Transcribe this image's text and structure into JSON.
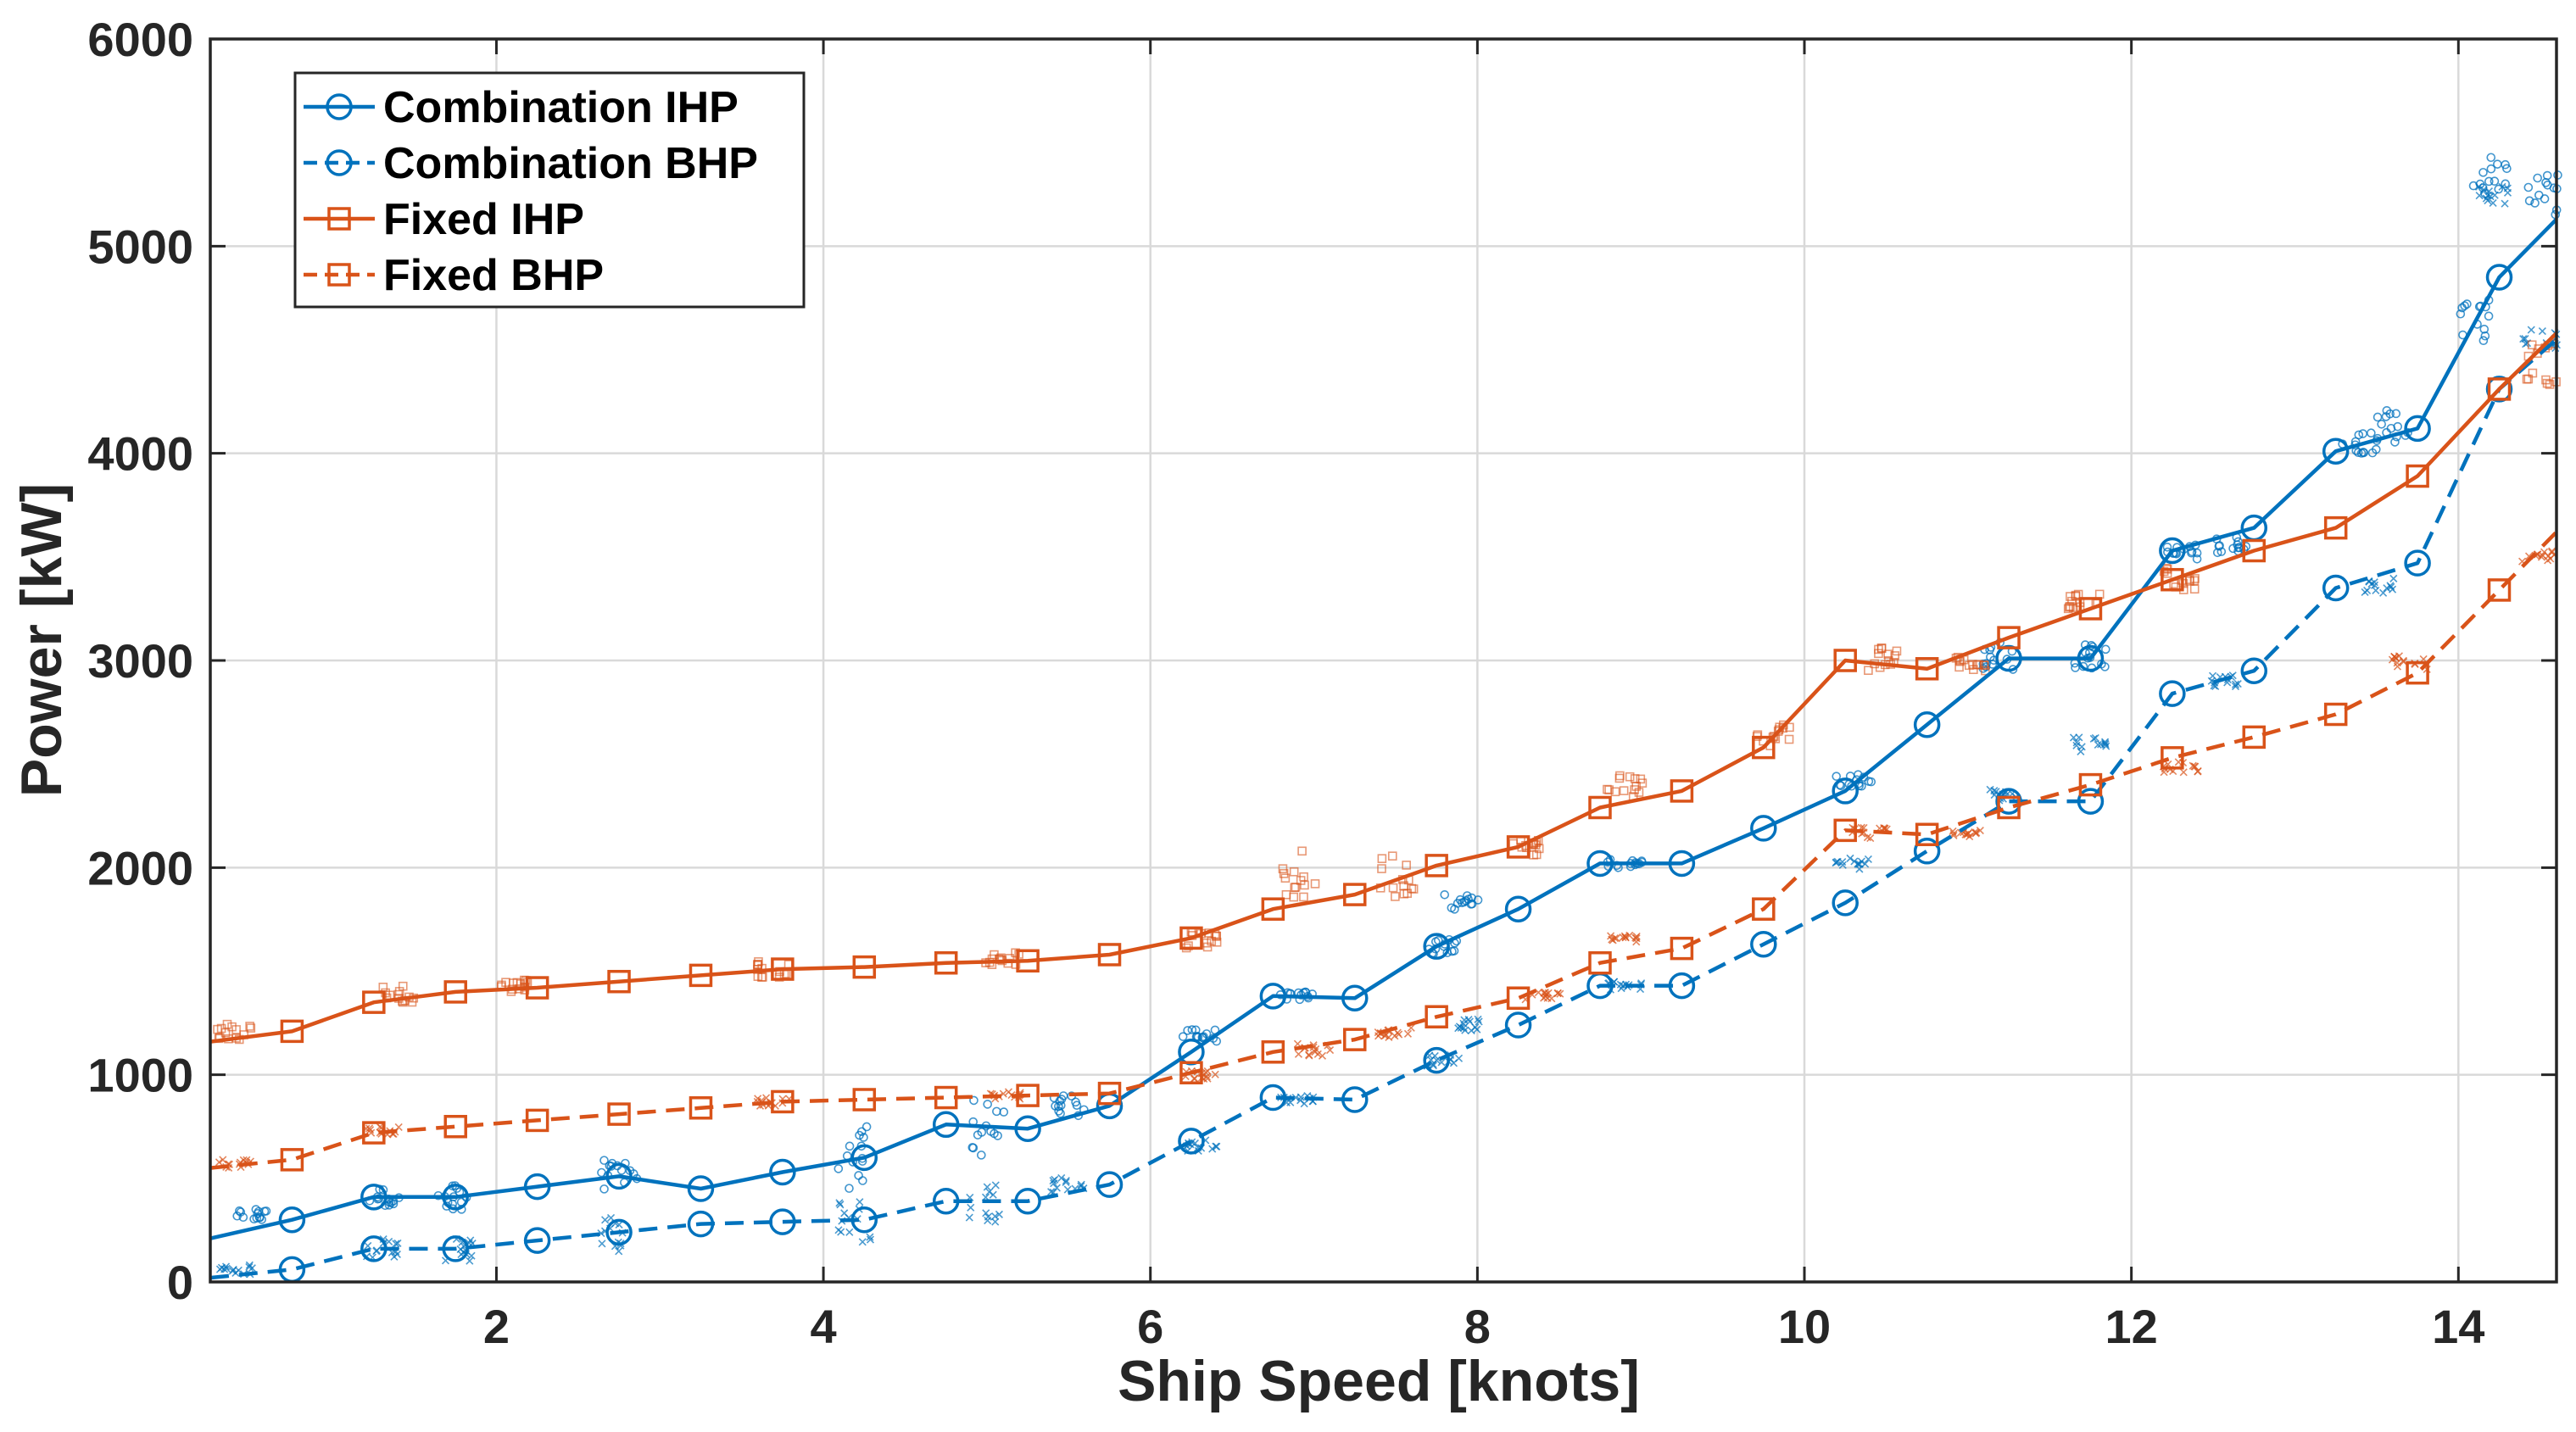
{
  "chart_data": {
    "type": "line",
    "title": "",
    "xlabel": "Ship Speed [knots]",
    "ylabel": "Power [kW]",
    "xlim": [
      0.25,
      14.6
    ],
    "ylim": [
      0,
      6000
    ],
    "xticks": [
      2,
      4,
      6,
      8,
      10,
      12,
      14
    ],
    "xtick_labels": [
      "2",
      "4",
      "6",
      "8",
      "10",
      "12",
      "14"
    ],
    "yticks": [
      0,
      1000,
      2000,
      3000,
      4000,
      5000,
      6000
    ],
    "ytick_labels": [
      "0",
      "1000",
      "2000",
      "3000",
      "4000",
      "5000",
      "6000"
    ],
    "grid": true,
    "legend_position": "top-left",
    "colors": {
      "blue": "#0072BD",
      "orange": "#D95319",
      "axis": "#262626",
      "grid": "#d9d9d9"
    },
    "series": [
      {
        "name": "Combination IHP",
        "style": "solid",
        "marker": "circle",
        "color": "#0072BD",
        "x": [
          0.25,
          0.75,
          1.25,
          1.75,
          2.25,
          2.75,
          3.25,
          3.75,
          4.25,
          4.75,
          5.25,
          5.75,
          6.25,
          6.75,
          7.25,
          7.75,
          8.25,
          8.75,
          9.25,
          9.75,
          10.25,
          10.75,
          11.25,
          11.75,
          12.25,
          12.75,
          13.25,
          13.75,
          14.25,
          14.6
        ],
        "y": [
          210,
          300,
          410,
          410,
          460,
          510,
          450,
          530,
          600,
          760,
          740,
          850,
          1110,
          1380,
          1370,
          1620,
          1800,
          2020,
          2020,
          2190,
          2370,
          2690,
          3010,
          3010,
          3530,
          3640,
          4010,
          4120,
          4850,
          5130
        ],
        "marker_indices": [
          1,
          2,
          3,
          4,
          5,
          6,
          7,
          8,
          9,
          10,
          11,
          12,
          13,
          14,
          15,
          16,
          17,
          18,
          19,
          20,
          21,
          22,
          23,
          24,
          25,
          26,
          27,
          28
        ]
      },
      {
        "name": "Combination BHP",
        "style": "dashed",
        "marker": "circle",
        "color": "#0072BD",
        "x": [
          0.25,
          0.75,
          1.25,
          1.75,
          2.25,
          2.75,
          3.25,
          3.75,
          4.25,
          4.75,
          5.25,
          5.75,
          6.25,
          6.75,
          7.25,
          7.75,
          8.25,
          8.75,
          9.25,
          9.75,
          10.25,
          10.75,
          11.25,
          11.75,
          12.25,
          12.75,
          13.25,
          13.75,
          14.25,
          14.6
        ],
        "y": [
          20,
          60,
          160,
          160,
          200,
          240,
          280,
          290,
          300,
          390,
          390,
          470,
          680,
          890,
          880,
          1070,
          1240,
          1430,
          1430,
          1630,
          1830,
          2080,
          2320,
          2320,
          2840,
          2950,
          3350,
          3470,
          4310,
          4550
        ],
        "marker_indices": [
          1,
          2,
          3,
          4,
          5,
          6,
          7,
          8,
          9,
          10,
          11,
          12,
          13,
          14,
          15,
          16,
          17,
          18,
          19,
          20,
          21,
          22,
          23,
          24,
          25,
          26,
          27,
          28
        ]
      },
      {
        "name": "Fixed IHP",
        "style": "solid",
        "marker": "square",
        "color": "#D95319",
        "x": [
          0.25,
          0.75,
          1.25,
          1.75,
          2.25,
          2.75,
          3.25,
          3.75,
          4.25,
          4.75,
          5.25,
          5.75,
          6.25,
          6.75,
          7.25,
          7.75,
          8.25,
          8.75,
          9.25,
          9.75,
          10.25,
          10.75,
          11.25,
          11.75,
          12.25,
          12.75,
          13.25,
          13.75,
          14.25,
          14.6
        ],
        "y": [
          1160,
          1210,
          1350,
          1400,
          1420,
          1450,
          1480,
          1510,
          1520,
          1540,
          1550,
          1580,
          1660,
          1800,
          1870,
          2010,
          2100,
          2290,
          2370,
          2580,
          3000,
          2960,
          3110,
          3250,
          3390,
          3530,
          3640,
          3890,
          4310,
          4580
        ],
        "marker_indices": [
          1,
          2,
          3,
          4,
          5,
          6,
          7,
          8,
          9,
          10,
          11,
          12,
          13,
          14,
          15,
          16,
          17,
          18,
          19,
          20,
          21,
          22,
          23,
          24,
          25,
          26,
          27,
          28
        ]
      },
      {
        "name": "Fixed BHP",
        "style": "dashed",
        "marker": "square",
        "color": "#D95319",
        "x": [
          0.25,
          0.75,
          1.25,
          1.75,
          2.25,
          2.75,
          3.25,
          3.75,
          4.25,
          4.75,
          5.25,
          5.75,
          6.25,
          6.75,
          7.25,
          7.75,
          8.25,
          8.75,
          9.25,
          9.75,
          10.25,
          10.75,
          11.25,
          11.75,
          12.25,
          12.75,
          13.25,
          13.75,
          14.25,
          14.6
        ],
        "y": [
          550,
          590,
          720,
          750,
          780,
          810,
          840,
          870,
          880,
          890,
          900,
          910,
          1010,
          1110,
          1170,
          1280,
          1370,
          1540,
          1610,
          1800,
          2180,
          2160,
          2290,
          2400,
          2530,
          2630,
          2740,
          2940,
          3340,
          3620
        ],
        "marker_indices": [
          1,
          2,
          3,
          4,
          5,
          6,
          7,
          8,
          9,
          10,
          11,
          12,
          13,
          14,
          15,
          16,
          17,
          18,
          19,
          20,
          21,
          22,
          23,
          24,
          25,
          26,
          27,
          28
        ]
      }
    ],
    "scatter_clouds": [
      {
        "series": "Combination IHP",
        "marker": "small-circle",
        "color": "#0072BD",
        "clusters": [
          [
            0.5,
            320,
            60
          ],
          [
            1.3,
            410,
            100
          ],
          [
            1.75,
            410,
            120
          ],
          [
            2.75,
            500,
            200
          ],
          [
            4.2,
            600,
            300
          ],
          [
            5.0,
            760,
            300
          ],
          [
            5.5,
            850,
            100
          ],
          [
            6.3,
            1190,
            60
          ],
          [
            6.9,
            1380,
            40
          ],
          [
            7.8,
            1620,
            80
          ],
          [
            7.9,
            1830,
            80
          ],
          [
            8.9,
            2020,
            40
          ],
          [
            10.3,
            2420,
            60
          ],
          [
            11.2,
            3020,
            160
          ],
          [
            11.75,
            3020,
            120
          ],
          [
            12.3,
            3520,
            80
          ],
          [
            12.6,
            3560,
            80
          ],
          [
            13.4,
            4060,
            120
          ],
          [
            13.6,
            4130,
            160
          ],
          [
            14.1,
            4640,
            200
          ],
          [
            14.2,
            5330,
            200
          ],
          [
            14.5,
            5250,
            200
          ]
        ]
      },
      {
        "series": "Combination BHP",
        "marker": "small-x",
        "color": "#0072BD",
        "clusters": [
          [
            0.4,
            60,
            50
          ],
          [
            1.3,
            160,
            100
          ],
          [
            1.75,
            160,
            120
          ],
          [
            2.75,
            240,
            200
          ],
          [
            4.2,
            290,
            220
          ],
          [
            5.0,
            390,
            200
          ],
          [
            5.5,
            470,
            80
          ],
          [
            6.3,
            660,
            60
          ],
          [
            6.9,
            880,
            40
          ],
          [
            7.8,
            1070,
            60
          ],
          [
            7.9,
            1240,
            60
          ],
          [
            8.9,
            1430,
            40
          ],
          [
            10.3,
            2020,
            60
          ],
          [
            11.2,
            2350,
            60
          ],
          [
            11.75,
            2600,
            80
          ],
          [
            12.6,
            2900,
            60
          ],
          [
            13.5,
            3360,
            80
          ],
          [
            14.2,
            5250,
            100
          ],
          [
            14.5,
            4550,
            100
          ]
        ]
      },
      {
        "series": "Fixed IHP",
        "marker": "small-square",
        "color": "#D95319",
        "clusters": [
          [
            0.4,
            1210,
            80
          ],
          [
            1.4,
            1390,
            80
          ],
          [
            2.1,
            1430,
            60
          ],
          [
            3.7,
            1510,
            80
          ],
          [
            5.1,
            1560,
            60
          ],
          [
            6.3,
            1650,
            80
          ],
          [
            6.9,
            1960,
            260
          ],
          [
            7.5,
            1970,
            220
          ],
          [
            8.3,
            2100,
            80
          ],
          [
            8.9,
            2400,
            120
          ],
          [
            9.8,
            2640,
            120
          ],
          [
            10.5,
            3010,
            120
          ],
          [
            11.0,
            2990,
            80
          ],
          [
            11.7,
            3290,
            80
          ],
          [
            12.3,
            3400,
            120
          ],
          [
            14.5,
            4430,
            200
          ]
        ]
      },
      {
        "series": "Fixed BHP",
        "marker": "small-x",
        "color": "#D95319",
        "clusters": [
          [
            0.4,
            570,
            40
          ],
          [
            1.3,
            730,
            40
          ],
          [
            3.7,
            870,
            40
          ],
          [
            5.1,
            900,
            40
          ],
          [
            6.3,
            1000,
            40
          ],
          [
            7.0,
            1120,
            60
          ],
          [
            7.5,
            1200,
            60
          ],
          [
            8.4,
            1380,
            40
          ],
          [
            8.9,
            1660,
            40
          ],
          [
            10.4,
            2170,
            60
          ],
          [
            11.0,
            2170,
            40
          ],
          [
            12.3,
            2480,
            60
          ],
          [
            13.7,
            2990,
            80
          ],
          [
            14.5,
            3500,
            60
          ]
        ]
      }
    ]
  }
}
